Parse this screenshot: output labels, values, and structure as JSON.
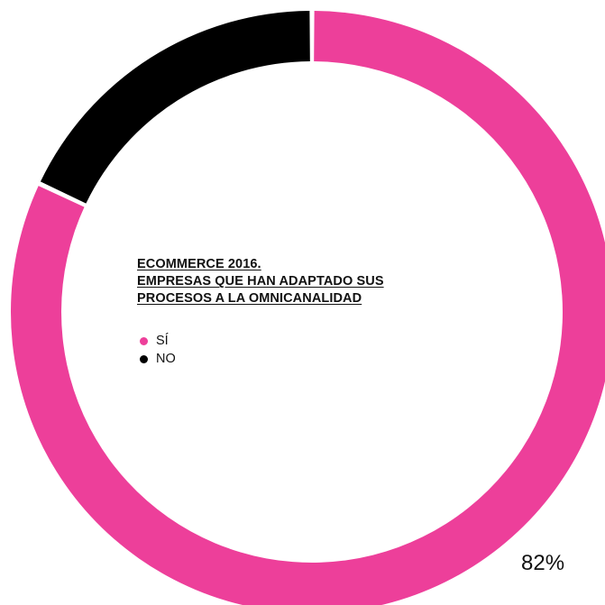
{
  "chart_data": {
    "type": "pie",
    "title_lines": [
      "ECOMMERCE 2016.",
      "EMPRESAS QUE HAN ADAPTADO SUS ",
      "PROCESOS A LA OMNICANALIDAD"
    ],
    "slices": [
      {
        "label": "SÍ",
        "value": 82,
        "color": "#ED3F9A"
      },
      {
        "label": "NO",
        "value": 18,
        "color": "#000000"
      }
    ],
    "data_labels": [
      "82%"
    ],
    "legend_position": "left-center"
  }
}
